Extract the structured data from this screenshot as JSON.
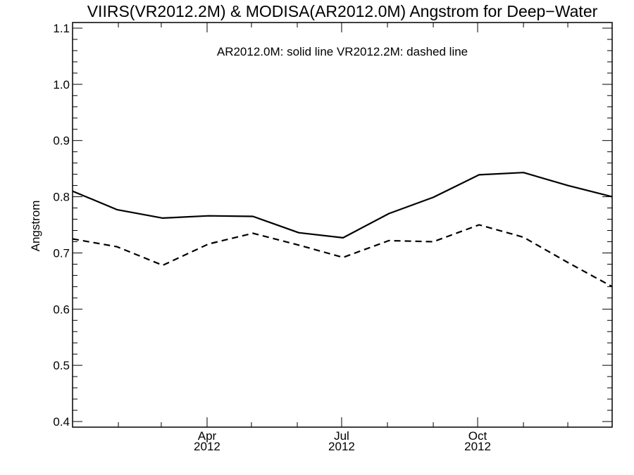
{
  "chart_data": {
    "type": "line",
    "title": "VIIRS(VR2012.2M) & MODISA(AR2012.0M)  Angstrom for Deep−Water",
    "annotation": "AR2012.0M: solid line   VR2012.2M: dashed line",
    "xlabel": "",
    "ylabel": "Angstrom",
    "ylim": [
      0.39,
      1.11
    ],
    "yticks": [
      0.4,
      0.5,
      0.6,
      0.7,
      0.8,
      0.9,
      1.0,
      1.1
    ],
    "ytick_labels": [
      "0.4",
      "0.5",
      "0.6",
      "0.7",
      "0.8",
      "0.9",
      "1.0",
      "1.1"
    ],
    "xlim": [
      "2012-01-01",
      "2012-12-31"
    ],
    "xticks": [
      {
        "date": "2012-04-01",
        "month": "Apr",
        "year": "2012"
      },
      {
        "date": "2012-07-01",
        "month": "Jul",
        "year": "2012"
      },
      {
        "date": "2012-10-01",
        "month": "Oct",
        "year": "2012"
      }
    ],
    "x": [
      "2012-01-01",
      "2012-01-31",
      "2012-03-02",
      "2012-04-02",
      "2012-05-02",
      "2012-06-02",
      "2012-07-02",
      "2012-08-02",
      "2012-09-01",
      "2012-10-02",
      "2012-11-01",
      "2012-12-01",
      "2012-12-31"
    ],
    "series": [
      {
        "line_style": "solid",
        "values": [
          0.81,
          0.777,
          0.762,
          0.766,
          0.765,
          0.736,
          0.727,
          0.77,
          0.799,
          0.839,
          0.843,
          0.82,
          0.8
        ]
      },
      {
        "line_style": "dashed",
        "values": [
          0.725,
          0.711,
          0.678,
          0.716,
          0.735,
          0.714,
          0.692,
          0.722,
          0.72,
          0.75,
          0.728,
          0.683,
          0.64
        ]
      }
    ],
    "grid": false,
    "colors": {
      "lines": "#000000",
      "background": "#ffffff"
    }
  }
}
